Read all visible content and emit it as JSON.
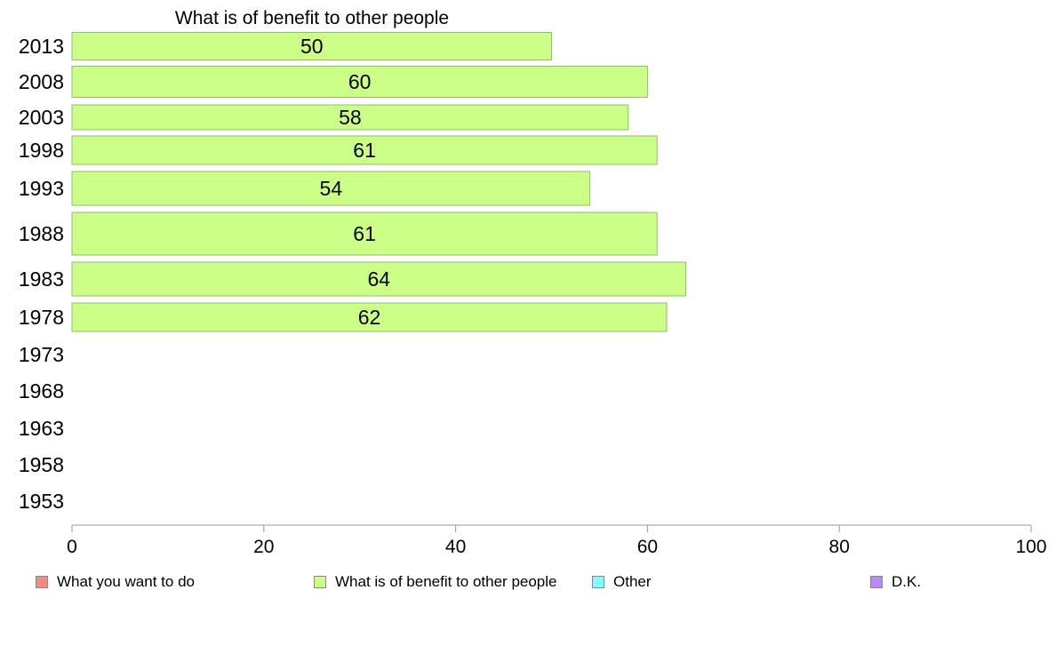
{
  "chart_data": {
    "type": "bar",
    "orientation": "horizontal",
    "title": "What is of benefit to other people",
    "categories": [
      "2013",
      "2008",
      "2003",
      "1998",
      "1993",
      "1988",
      "1983",
      "1978",
      "1973",
      "1968",
      "1963",
      "1958",
      "1953"
    ],
    "series": [
      {
        "name": "What is of benefit to other people",
        "color": "#ccff88",
        "values": [
          50,
          60,
          58,
          61,
          54,
          61,
          64,
          62,
          null,
          null,
          null,
          null,
          null
        ],
        "labels": [
          "50",
          "60",
          "58",
          "61",
          "54",
          "61",
          "64",
          "62",
          "",
          "",
          "",
          "",
          ""
        ]
      }
    ],
    "xlim": [
      0,
      100
    ],
    "xticks": [
      "0",
      "20",
      "40",
      "60",
      "80",
      "100"
    ],
    "xlabel": "",
    "ylabel": "",
    "grid": false,
    "legend_placement": "bottom",
    "legend": [
      {
        "label": "What you want to do",
        "color": "#f28b8b"
      },
      {
        "label": "What is of benefit to other people",
        "color": "#ccff88"
      },
      {
        "label": "Other",
        "color": "#80ffff"
      },
      {
        "label": "D.K.",
        "color": "#b78af5"
      }
    ]
  }
}
